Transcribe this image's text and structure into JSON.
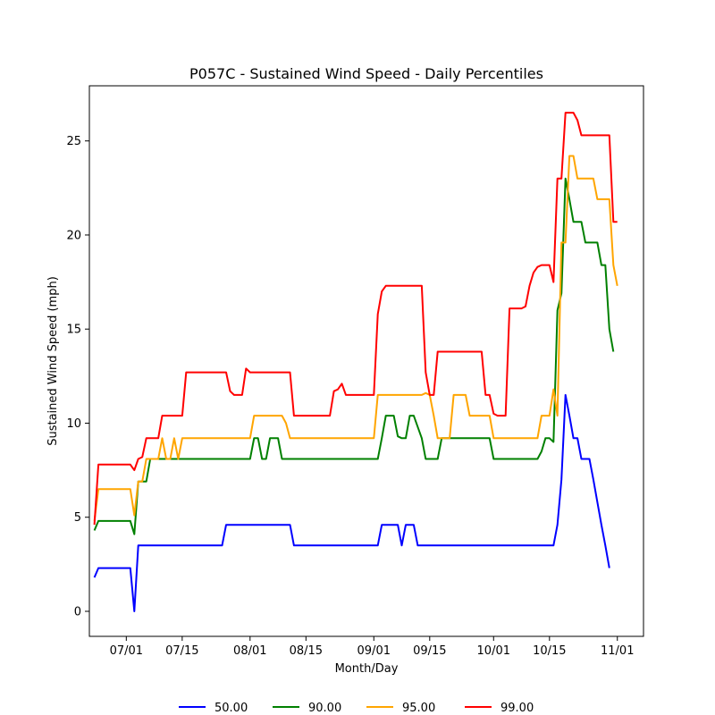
{
  "chart_data": {
    "type": "line",
    "title": "P057C - Sustained Wind Speed - Daily Percentiles",
    "xlabel": "Month/Day",
    "ylabel": "Sustained Wind Speed (mph)",
    "x_ticks": [
      {
        "label": "07/01",
        "day": 7
      },
      {
        "label": "07/15",
        "day": 21
      },
      {
        "label": "08/01",
        "day": 38
      },
      {
        "label": "08/15",
        "day": 52
      },
      {
        "label": "09/01",
        "day": 69
      },
      {
        "label": "09/15",
        "day": 83
      },
      {
        "label": "10/01",
        "day": 99
      },
      {
        "label": "10/15",
        "day": 113
      },
      {
        "label": "11/01",
        "day": 130
      }
    ],
    "y_ticks": [
      0,
      5,
      10,
      15,
      20,
      25
    ],
    "xlim": [
      -2.25,
      136.55
    ],
    "ylim": [
      -1.33,
      27.93
    ],
    "legend": {
      "position": "bottom",
      "entries": [
        "50.00",
        "90.00",
        "95.00",
        "99.00"
      ]
    },
    "grid": false,
    "series": [
      {
        "name": "50.00",
        "color": "#0000ff",
        "points": [
          [
            -1,
            1.8
          ],
          [
            0,
            2.3
          ],
          [
            7,
            2.3
          ],
          [
            8,
            2.3
          ],
          [
            9,
            0
          ],
          [
            10,
            3.5
          ],
          [
            11,
            3.5
          ],
          [
            19,
            3.5
          ],
          [
            20,
            3.5
          ],
          [
            31,
            3.5
          ],
          [
            32,
            4.6
          ],
          [
            41,
            4.6
          ],
          [
            48,
            4.6
          ],
          [
            49,
            3.5
          ],
          [
            69,
            3.5
          ],
          [
            70,
            3.5
          ],
          [
            71,
            4.6
          ],
          [
            75,
            4.6
          ],
          [
            76,
            3.5
          ],
          [
            77,
            4.6
          ],
          [
            79,
            4.6
          ],
          [
            80,
            3.5
          ],
          [
            84,
            3.5
          ],
          [
            99,
            3.5
          ],
          [
            112,
            3.5
          ],
          [
            113,
            3.5
          ],
          [
            114,
            3.5
          ],
          [
            115,
            4.6
          ],
          [
            116,
            7
          ],
          [
            117,
            11.5
          ],
          [
            118,
            10.4
          ],
          [
            119,
            9.2
          ],
          [
            120,
            9.2
          ],
          [
            121,
            8.1
          ],
          [
            123,
            8.1
          ],
          [
            124,
            7
          ],
          [
            125,
            5.8
          ],
          [
            126,
            4.6
          ],
          [
            127,
            3.5
          ],
          [
            128,
            2.3
          ]
        ]
      },
      {
        "name": "90.00",
        "color": "#008000",
        "points": [
          [
            -1,
            4.3
          ],
          [
            0,
            4.8
          ],
          [
            7,
            4.8
          ],
          [
            8,
            4.8
          ],
          [
            9,
            4.1
          ],
          [
            10,
            6.9
          ],
          [
            11,
            6.9
          ],
          [
            12,
            6.9
          ],
          [
            13,
            8.1
          ],
          [
            14,
            8.1
          ],
          [
            16,
            8.1
          ],
          [
            17,
            8.1
          ],
          [
            20,
            8.1
          ],
          [
            38,
            8.1
          ],
          [
            39,
            9.2
          ],
          [
            40,
            9.2
          ],
          [
            41,
            8.1
          ],
          [
            42,
            8.1
          ],
          [
            43,
            9.2
          ],
          [
            45,
            9.2
          ],
          [
            46,
            8.1
          ],
          [
            47,
            8.1
          ],
          [
            48,
            8.1
          ],
          [
            69,
            8.1
          ],
          [
            70,
            8.1
          ],
          [
            71,
            9.2
          ],
          [
            72,
            10.4
          ],
          [
            74,
            10.4
          ],
          [
            75,
            9.3
          ],
          [
            76,
            9.2
          ],
          [
            77,
            9.2
          ],
          [
            78,
            10.4
          ],
          [
            79,
            10.4
          ],
          [
            80,
            9.8
          ],
          [
            81,
            9.2
          ],
          [
            82,
            8.1
          ],
          [
            85,
            8.1
          ],
          [
            86,
            9.2
          ],
          [
            95,
            9.2
          ],
          [
            98,
            9.2
          ],
          [
            99,
            8.1
          ],
          [
            110,
            8.1
          ],
          [
            111,
            8.5
          ],
          [
            112,
            9.2
          ],
          [
            113,
            9.2
          ],
          [
            114,
            9
          ],
          [
            115,
            16
          ],
          [
            116,
            16.9
          ],
          [
            117,
            23
          ],
          [
            118,
            21.9
          ],
          [
            119,
            20.7
          ],
          [
            121,
            20.7
          ],
          [
            122,
            19.6
          ],
          [
            125,
            19.6
          ],
          [
            126,
            18.4
          ],
          [
            127,
            18.4
          ],
          [
            128,
            15
          ],
          [
            129,
            13.8
          ]
        ]
      },
      {
        "name": "95.00",
        "color": "#ffa500",
        "points": [
          [
            -1,
            4.8
          ],
          [
            0,
            6.5
          ],
          [
            7,
            6.5
          ],
          [
            8,
            6.5
          ],
          [
            9,
            5.1
          ],
          [
            10,
            6.9
          ],
          [
            11,
            6.9
          ],
          [
            12,
            8.1
          ],
          [
            14,
            8.1
          ],
          [
            15,
            8.1
          ],
          [
            16,
            9.2
          ],
          [
            17,
            8.1
          ],
          [
            18,
            8.1
          ],
          [
            19,
            9.2
          ],
          [
            20,
            8.1
          ],
          [
            21,
            9.2
          ],
          [
            28,
            9.2
          ],
          [
            38,
            9.2
          ],
          [
            39,
            10.4
          ],
          [
            46,
            10.4
          ],
          [
            47,
            10
          ],
          [
            48,
            9.2
          ],
          [
            69,
            9.2
          ],
          [
            70,
            11.5
          ],
          [
            81,
            11.5
          ],
          [
            82,
            11.6
          ],
          [
            83,
            11.5
          ],
          [
            84,
            10.4
          ],
          [
            85,
            9.2
          ],
          [
            88,
            9.2
          ],
          [
            89,
            11.5
          ],
          [
            92,
            11.5
          ],
          [
            93,
            10.4
          ],
          [
            98,
            10.4
          ],
          [
            99,
            9.2
          ],
          [
            105,
            9.2
          ],
          [
            110,
            9.2
          ],
          [
            111,
            10.4
          ],
          [
            113,
            10.4
          ],
          [
            114,
            11.8
          ],
          [
            115,
            10.4
          ],
          [
            116,
            19.6
          ],
          [
            117,
            19.6
          ],
          [
            118,
            24.2
          ],
          [
            119,
            24.2
          ],
          [
            120,
            23
          ],
          [
            124,
            23
          ],
          [
            125,
            21.9
          ],
          [
            128,
            21.9
          ],
          [
            129,
            18.4
          ],
          [
            130,
            17.3
          ]
        ]
      },
      {
        "name": "99.00",
        "color": "#ff0000",
        "points": [
          [
            -1,
            4.6
          ],
          [
            0,
            7.8
          ],
          [
            7,
            7.8
          ],
          [
            8,
            7.8
          ],
          [
            9,
            7.5
          ],
          [
            10,
            8.1
          ],
          [
            11,
            8.2
          ],
          [
            12,
            9.2
          ],
          [
            15,
            9.2
          ],
          [
            16,
            10.4
          ],
          [
            20,
            10.4
          ],
          [
            21,
            10.4
          ],
          [
            22,
            12.7
          ],
          [
            31,
            12.7
          ],
          [
            32,
            12.7
          ],
          [
            33,
            11.7
          ],
          [
            34,
            11.5
          ],
          [
            36,
            11.5
          ],
          [
            37,
            12.9
          ],
          [
            38,
            12.7
          ],
          [
            47,
            12.7
          ],
          [
            48,
            12.7
          ],
          [
            49,
            10.4
          ],
          [
            58,
            10.4
          ],
          [
            59,
            11.7
          ],
          [
            60,
            11.8
          ],
          [
            61,
            12.1
          ],
          [
            62,
            11.5
          ],
          [
            69,
            11.5
          ],
          [
            70,
            15.8
          ],
          [
            71,
            17
          ],
          [
            72,
            17.3
          ],
          [
            80,
            17.3
          ],
          [
            81,
            17.3
          ],
          [
            82,
            12.7
          ],
          [
            83,
            11.5
          ],
          [
            84,
            11.5
          ],
          [
            85,
            13.8
          ],
          [
            96,
            13.8
          ],
          [
            97,
            11.5
          ],
          [
            98,
            11.5
          ],
          [
            99,
            10.5
          ],
          [
            100,
            10.4
          ],
          [
            102,
            10.4
          ],
          [
            103,
            16.1
          ],
          [
            106,
            16.1
          ],
          [
            107,
            16.2
          ],
          [
            108,
            17.3
          ],
          [
            109,
            18
          ],
          [
            110,
            18.3
          ],
          [
            111,
            18.4
          ],
          [
            113,
            18.4
          ],
          [
            114,
            17.5
          ],
          [
            115,
            23
          ],
          [
            116,
            23
          ],
          [
            117,
            26.5
          ],
          [
            119,
            26.5
          ],
          [
            120,
            26.1
          ],
          [
            121,
            25.3
          ],
          [
            124,
            25.3
          ],
          [
            128,
            25.3
          ],
          [
            129,
            20.7
          ],
          [
            130,
            20.7
          ]
        ]
      }
    ]
  }
}
